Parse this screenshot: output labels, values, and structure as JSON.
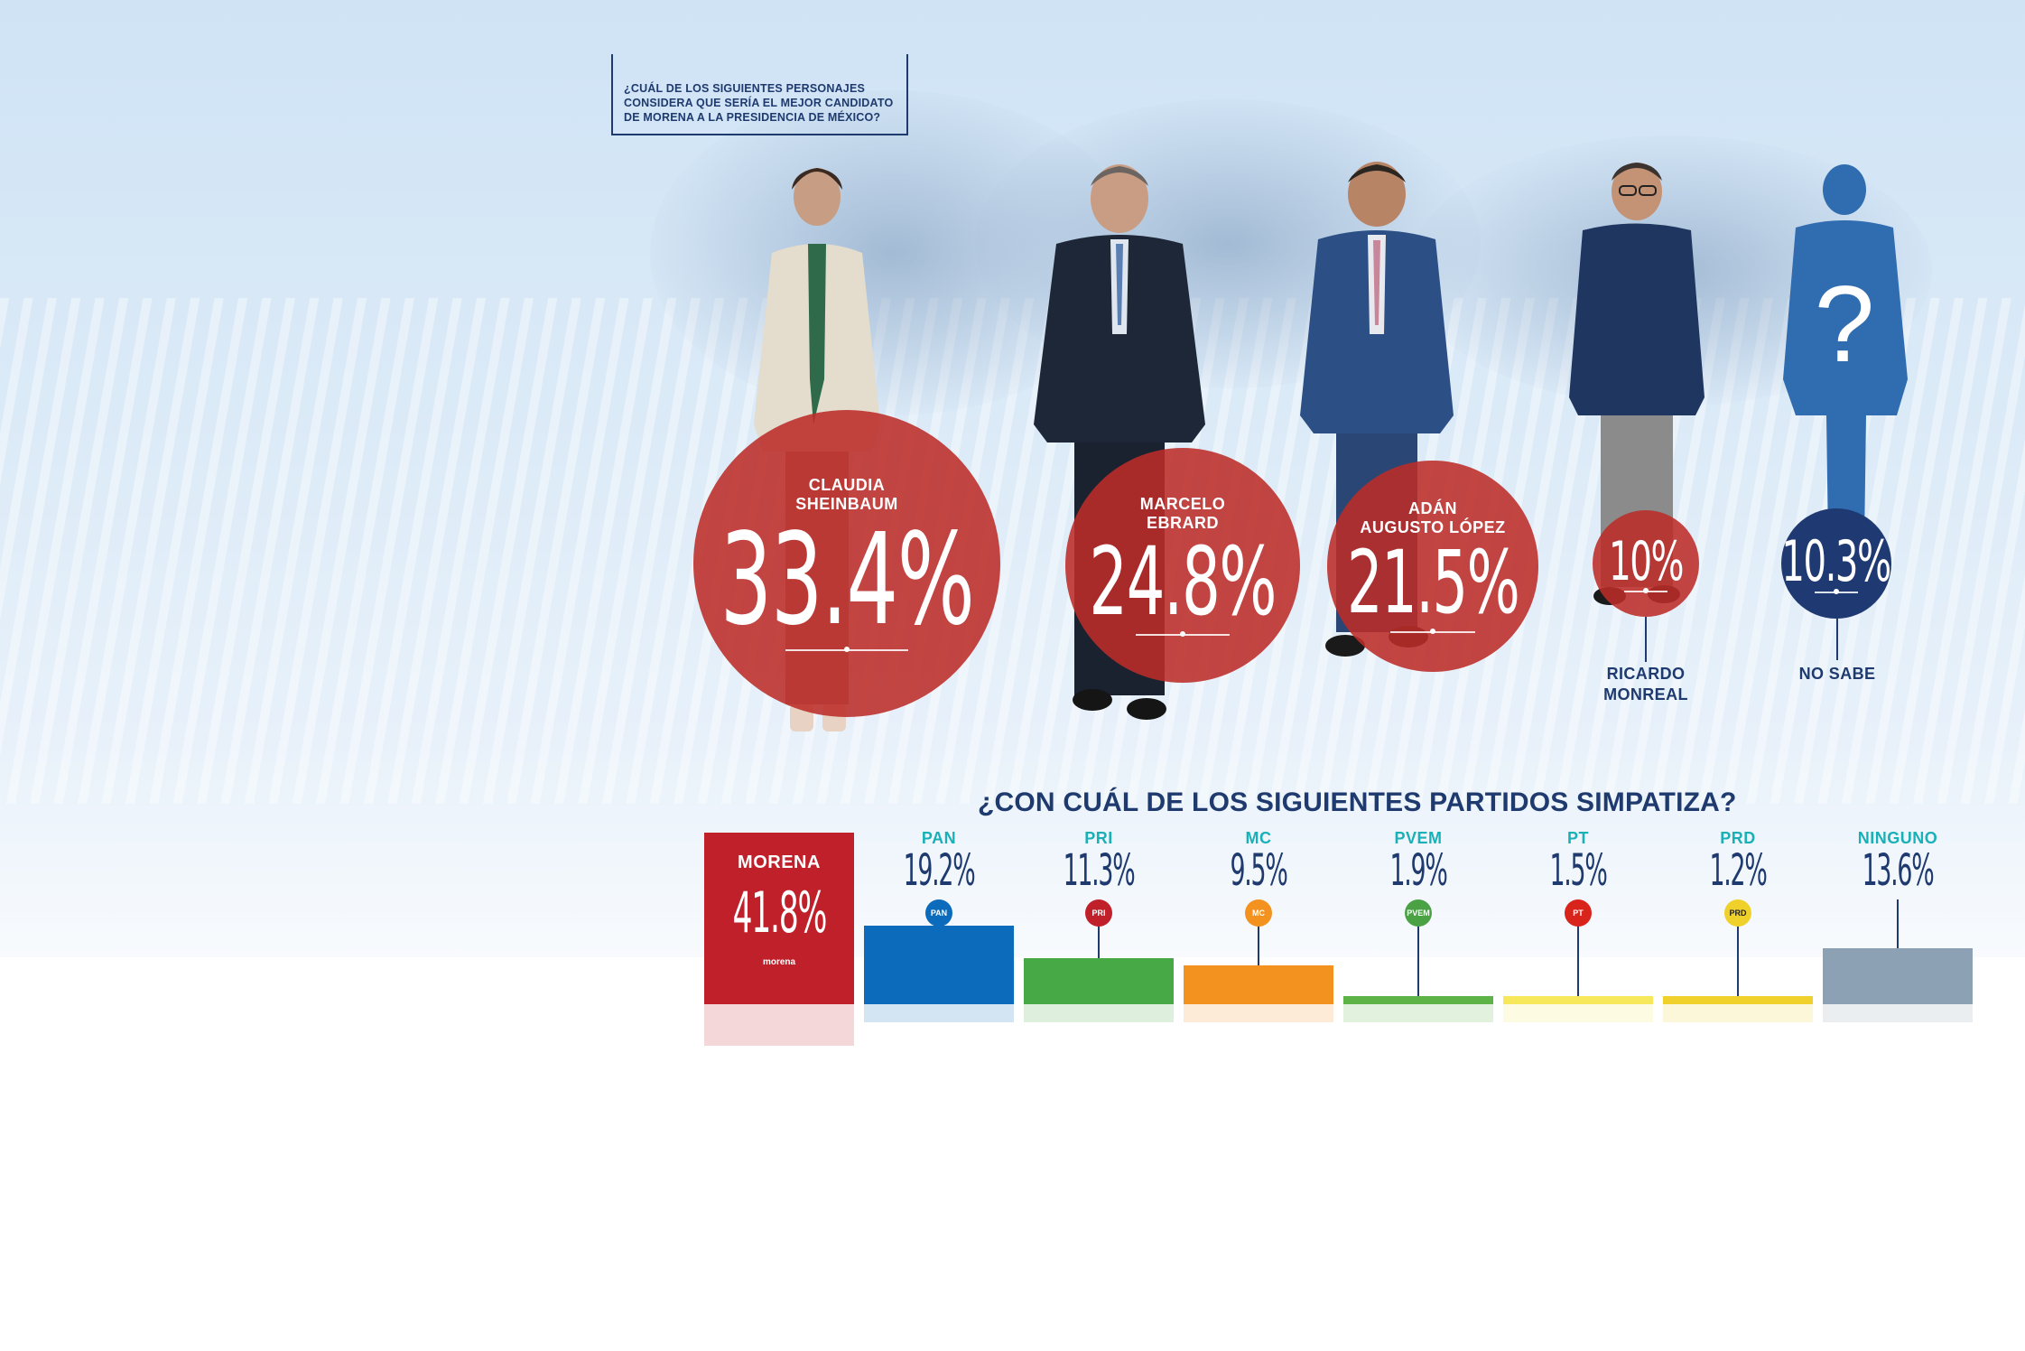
{
  "candidates_question": {
    "lines": [
      "¿CUÁL DE LOS SIGUIENTES PERSONAJES",
      "CONSIDERA QUE SERÍA EL MEJOR CANDIDATO",
      "DE MORENA A LA PRESIDENCIA DE MÉXICO?"
    ]
  },
  "candidates": [
    {
      "name_lines": [
        "CLAUDIA",
        "SHEINBAUM"
      ],
      "pct_text": "33.4%",
      "color": "#bc2c28"
    },
    {
      "name_lines": [
        "MARCELO",
        "EBRARD"
      ],
      "pct_text": "24.8%",
      "color": "#bc2c28"
    },
    {
      "name_lines": [
        "ADÁN",
        "AUGUSTO LÓPEZ"
      ],
      "pct_text": "21.5%",
      "color": "#bc2c28"
    },
    {
      "name_lines": [
        "RICARDO",
        "MONREAL"
      ],
      "pct_text": "10%",
      "color": "#bc2c28"
    },
    {
      "name_lines": [
        "NO SABE"
      ],
      "pct_text": "10.3%",
      "color": "#1f3a72"
    }
  ],
  "parties_question": "¿CON CUÁL DE LOS SIGUIENTES PARTIDOS SIMPATIZA?",
  "parties": [
    {
      "name": "MORENA",
      "pct_text": "41.8%",
      "color": "#c0202a",
      "logo": "morena"
    },
    {
      "name": "PAN",
      "pct_text": "19.2%",
      "color": "#0c6bbb",
      "logo": "PAN"
    },
    {
      "name": "PRI",
      "pct_text": "11.3%",
      "color": "#47a846",
      "logo": "PRI"
    },
    {
      "name": "MC",
      "pct_text": "9.5%",
      "color": "#f3921f",
      "logo": "MC"
    },
    {
      "name": "PVEM",
      "pct_text": "1.9%",
      "color": "#5db346",
      "logo": "PVEM"
    },
    {
      "name": "PT",
      "pct_text": "1.5%",
      "color": "#f6e85a",
      "logo": "PT"
    },
    {
      "name": "PRD",
      "pct_text": "1.2%",
      "color": "#f0d02a",
      "logo": "PRD"
    },
    {
      "name": "NINGUNO",
      "pct_text": "13.6%",
      "color": "#8ca2b4",
      "logo": ""
    }
  ],
  "chart_data": [
    {
      "type": "bubble",
      "title": "¿CUÁL DE LOS SIGUIENTES PERSONAJES CONSIDERA QUE SERÍA EL MEJOR CANDIDATO DE MORENA A LA PRESIDENCIA DE MÉXICO?",
      "categories": [
        "CLAUDIA SHEINBAUM",
        "MARCELO EBRARD",
        "ADÁN AUGUSTO LÓPEZ",
        "RICARDO MONREAL",
        "NO SABE"
      ],
      "values": [
        33.4,
        24.8,
        21.5,
        10,
        10.3
      ],
      "unit": "%"
    },
    {
      "type": "bar",
      "title": "¿CON CUÁL DE LOS SIGUIENTES PARTIDOS SIMPATIZA?",
      "categories": [
        "MORENA",
        "PAN",
        "PRI",
        "MC",
        "PVEM",
        "PT",
        "PRD",
        "NINGUNO"
      ],
      "values": [
        41.8,
        19.2,
        11.3,
        9.5,
        1.9,
        1.5,
        1.2,
        13.6
      ],
      "unit": "%"
    }
  ]
}
